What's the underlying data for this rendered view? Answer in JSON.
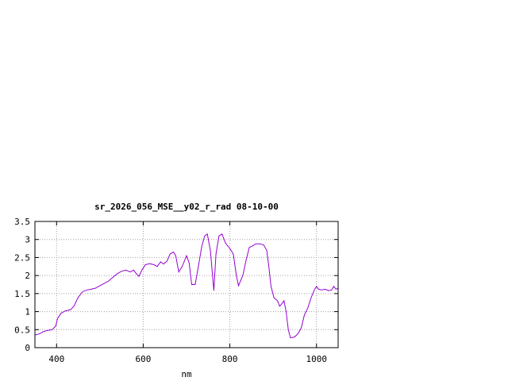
{
  "chart_data": {
    "type": "line",
    "title": "sr_2026_056_MSE__y02_r_rad 08-10-00",
    "xlabel": "nm",
    "ylabel": "",
    "xlim": [
      350,
      1050
    ],
    "ylim": [
      0,
      3.5
    ],
    "x_ticks": [
      400,
      600,
      800,
      1000
    ],
    "x_tick_labels": [
      "400",
      "600",
      "800",
      "1000"
    ],
    "y_ticks": [
      0,
      0.5,
      1,
      1.5,
      2,
      2.5,
      3,
      3.5
    ],
    "y_tick_labels": [
      "0",
      "0.5",
      "1",
      "1.5",
      "2",
      "2.5",
      "3",
      "3.5"
    ],
    "grid": true,
    "line_color": "#9400d3",
    "series": [
      {
        "values": [
          [
            350,
            0.35
          ],
          [
            360,
            0.38
          ],
          [
            370,
            0.45
          ],
          [
            380,
            0.48
          ],
          [
            390,
            0.5
          ],
          [
            398,
            0.6
          ],
          [
            402,
            0.8
          ],
          [
            410,
            0.95
          ],
          [
            420,
            1.02
          ],
          [
            432,
            1.05
          ],
          [
            440,
            1.15
          ],
          [
            450,
            1.4
          ],
          [
            460,
            1.55
          ],
          [
            470,
            1.6
          ],
          [
            480,
            1.62
          ],
          [
            490,
            1.65
          ],
          [
            500,
            1.72
          ],
          [
            510,
            1.78
          ],
          [
            520,
            1.85
          ],
          [
            530,
            1.95
          ],
          [
            540,
            2.05
          ],
          [
            550,
            2.12
          ],
          [
            560,
            2.15
          ],
          [
            570,
            2.1
          ],
          [
            578,
            2.15
          ],
          [
            584,
            2.05
          ],
          [
            590,
            1.98
          ],
          [
            597,
            2.15
          ],
          [
            605,
            2.3
          ],
          [
            615,
            2.33
          ],
          [
            625,
            2.3
          ],
          [
            632,
            2.25
          ],
          [
            640,
            2.38
          ],
          [
            647,
            2.32
          ],
          [
            655,
            2.4
          ],
          [
            662,
            2.6
          ],
          [
            670,
            2.65
          ],
          [
            675,
            2.55
          ],
          [
            682,
            2.1
          ],
          [
            690,
            2.25
          ],
          [
            700,
            2.55
          ],
          [
            706,
            2.35
          ],
          [
            712,
            1.75
          ],
          [
            720,
            1.75
          ],
          [
            728,
            2.3
          ],
          [
            735,
            2.8
          ],
          [
            742,
            3.1
          ],
          [
            748,
            3.15
          ],
          [
            755,
            2.7
          ],
          [
            763,
            1.58
          ],
          [
            768,
            2.6
          ],
          [
            775,
            3.1
          ],
          [
            782,
            3.15
          ],
          [
            790,
            2.9
          ],
          [
            800,
            2.75
          ],
          [
            808,
            2.6
          ],
          [
            815,
            2.0
          ],
          [
            820,
            1.72
          ],
          [
            830,
            2.0
          ],
          [
            838,
            2.45
          ],
          [
            845,
            2.78
          ],
          [
            852,
            2.82
          ],
          [
            860,
            2.88
          ],
          [
            870,
            2.88
          ],
          [
            878,
            2.85
          ],
          [
            885,
            2.7
          ],
          [
            890,
            2.25
          ],
          [
            895,
            1.7
          ],
          [
            902,
            1.38
          ],
          [
            910,
            1.3
          ],
          [
            915,
            1.15
          ],
          [
            920,
            1.22
          ],
          [
            925,
            1.3
          ],
          [
            930,
            1.0
          ],
          [
            935,
            0.5
          ],
          [
            940,
            0.27
          ],
          [
            950,
            0.3
          ],
          [
            958,
            0.4
          ],
          [
            965,
            0.55
          ],
          [
            972,
            0.9
          ],
          [
            980,
            1.1
          ],
          [
            988,
            1.4
          ],
          [
            995,
            1.6
          ],
          [
            1000,
            1.7
          ],
          [
            1005,
            1.62
          ],
          [
            1012,
            1.6
          ],
          [
            1020,
            1.62
          ],
          [
            1028,
            1.58
          ],
          [
            1035,
            1.6
          ],
          [
            1040,
            1.7
          ],
          [
            1045,
            1.62
          ],
          [
            1050,
            1.65
          ]
        ]
      }
    ]
  }
}
